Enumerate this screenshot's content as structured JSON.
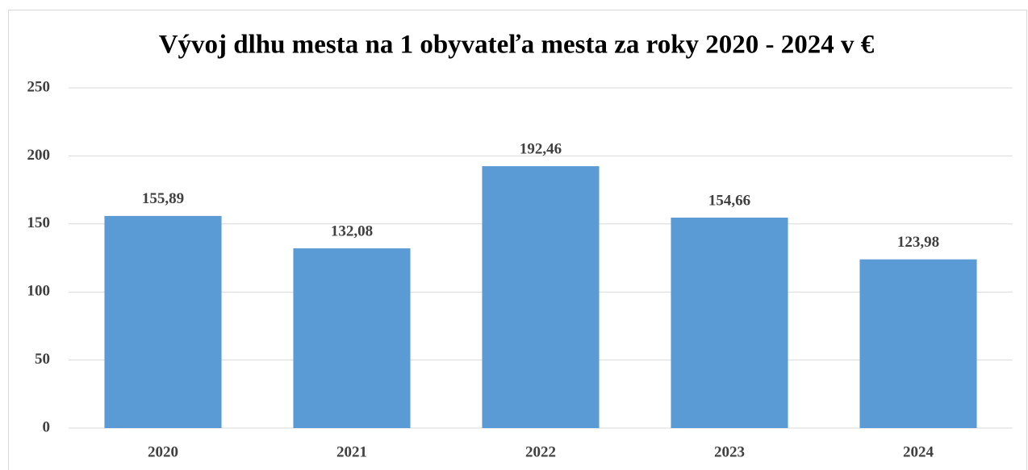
{
  "chart_data": {
    "type": "bar",
    "title": "Vývoj dlhu mesta na 1 obyvateľa mesta za roky 2020 - 2024 v €",
    "categories": [
      "2020",
      "2021",
      "2022",
      "2023",
      "2024"
    ],
    "values": [
      155.89,
      132.08,
      192.46,
      154.66,
      123.98
    ],
    "value_labels": [
      "155,89",
      "132,08",
      "192,46",
      "154,66",
      "123,98"
    ],
    "color": "#5b9bd5",
    "ylim": [
      0,
      250
    ],
    "yticks": [
      0,
      50,
      100,
      150,
      200,
      250
    ],
    "grid": true
  }
}
